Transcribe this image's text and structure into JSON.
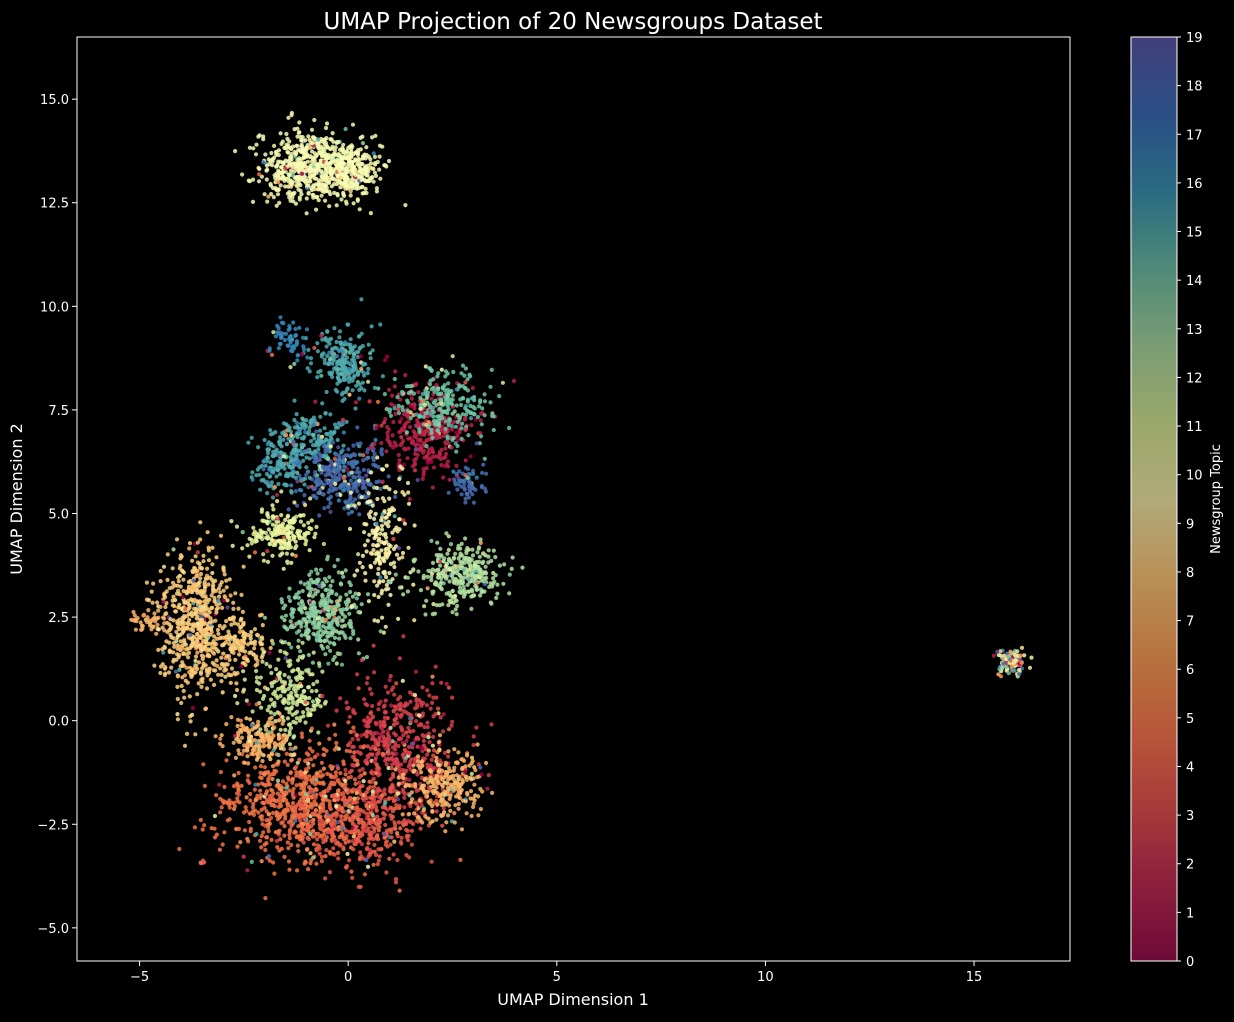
{
  "chart_data": {
    "type": "scatter",
    "title": "UMAP Projection of 20 Newsgroups Dataset",
    "xlabel": "UMAP Dimension 1",
    "ylabel": "UMAP Dimension 2",
    "xlim": [
      -6.5,
      17.3
    ],
    "ylim": [
      -5.8,
      16.5
    ],
    "xticks": [
      -5,
      0,
      5,
      10,
      15
    ],
    "xtick_labels": [
      "−5",
      "0",
      "5",
      "10",
      "15"
    ],
    "yticks": [
      -5.0,
      -2.5,
      0.0,
      2.5,
      5.0,
      7.5,
      10.0,
      12.5,
      15.0
    ],
    "ytick_labels": [
      "−5.0",
      "−2.5",
      "0.0",
      "2.5",
      "5.0",
      "7.5",
      "10.0",
      "12.5",
      "15.0"
    ],
    "grid": false,
    "background": "#000000",
    "colorbar": {
      "label": "Newsgroup Topic",
      "min": 0,
      "max": 19,
      "ticks": [
        0,
        1,
        2,
        3,
        4,
        5,
        6,
        7,
        8,
        9,
        10,
        11,
        12,
        13,
        14,
        15,
        16,
        17,
        18,
        19
      ],
      "tick_labels": [
        "0",
        "1",
        "2",
        "3",
        "4",
        "5",
        "6",
        "7",
        "8",
        "9",
        "10",
        "11",
        "12",
        "13",
        "14",
        "15",
        "16",
        "17",
        "18",
        "19"
      ],
      "colormap": [
        "#9e0142",
        "#d53e4f",
        "#f46d43",
        "#fdae61",
        "#fee08b",
        "#ffffbf",
        "#e6f598",
        "#abdda4",
        "#66c2a5",
        "#3288bd",
        "#5e4fa2"
      ],
      "colorbar_display_gradient": [
        "#6e0a38",
        "#8c1f3c",
        "#a83b3a",
        "#b8583a",
        "#b8743f",
        "#b89058",
        "#b0aa78",
        "#9aa86a",
        "#7a9c74",
        "#4e8a78",
        "#2a6a82",
        "#2a4f86",
        "#433f7a"
      ]
    },
    "clusters": [
      {
        "cx": -1.0,
        "cy": 13.4,
        "sx": 0.55,
        "sy": 0.42,
        "n": 520,
        "topic": 10
      },
      {
        "cx": 0.0,
        "cy": 13.3,
        "sx": 0.4,
        "sy": 0.35,
        "n": 300,
        "topic": 10
      },
      {
        "cx": -1.4,
        "cy": 9.2,
        "sx": 0.25,
        "sy": 0.25,
        "n": 60,
        "topic": 17
      },
      {
        "cx": -0.1,
        "cy": 8.6,
        "sx": 0.35,
        "sy": 0.4,
        "n": 220,
        "topic": 16
      },
      {
        "cx": -1.0,
        "cy": 6.7,
        "sx": 0.6,
        "sy": 0.4,
        "n": 250,
        "topic": 16
      },
      {
        "cx": -0.2,
        "cy": 5.9,
        "sx": 0.55,
        "sy": 0.45,
        "n": 300,
        "topic": 18
      },
      {
        "cx": 1.8,
        "cy": 7.0,
        "sx": 0.6,
        "sy": 0.55,
        "n": 330,
        "topic": 1
      },
      {
        "cx": 2.3,
        "cy": 7.6,
        "sx": 0.55,
        "sy": 0.45,
        "n": 250,
        "topic": 15
      },
      {
        "cx": 2.9,
        "cy": 5.7,
        "sx": 0.2,
        "sy": 0.2,
        "n": 60,
        "topic": 18
      },
      {
        "cx": -1.6,
        "cy": 6.0,
        "sx": 0.3,
        "sy": 0.3,
        "n": 90,
        "topic": 16
      },
      {
        "cx": -1.6,
        "cy": 4.5,
        "sx": 0.35,
        "sy": 0.3,
        "n": 200,
        "topic": 11
      },
      {
        "cx": 0.8,
        "cy": 4.3,
        "sx": 0.3,
        "sy": 0.9,
        "n": 200,
        "topic": 9
      },
      {
        "cx": 2.7,
        "cy": 3.5,
        "sx": 0.5,
        "sy": 0.35,
        "n": 330,
        "topic": 13
      },
      {
        "cx": -0.6,
        "cy": 2.6,
        "sx": 0.45,
        "sy": 0.5,
        "n": 330,
        "topic": 14
      },
      {
        "cx": -3.6,
        "cy": 2.4,
        "sx": 0.45,
        "sy": 0.85,
        "n": 600,
        "topic": 7
      },
      {
        "cx": -4.8,
        "cy": 2.4,
        "sx": 0.25,
        "sy": 0.15,
        "n": 40,
        "topic": 6
      },
      {
        "cx": -2.5,
        "cy": 1.8,
        "sx": 0.3,
        "sy": 0.35,
        "n": 120,
        "topic": 7
      },
      {
        "cx": -1.4,
        "cy": 0.6,
        "sx": 0.45,
        "sy": 0.5,
        "n": 220,
        "topic": 12
      },
      {
        "cx": 1.2,
        "cy": -0.5,
        "sx": 0.7,
        "sy": 0.8,
        "n": 480,
        "topic": 2
      },
      {
        "cx": -1.1,
        "cy": -2.0,
        "sx": 0.9,
        "sy": 0.7,
        "n": 700,
        "topic": 4
      },
      {
        "cx": 0.4,
        "cy": -2.4,
        "sx": 0.7,
        "sy": 0.6,
        "n": 400,
        "topic": 3
      },
      {
        "cx": 2.3,
        "cy": -1.6,
        "sx": 0.45,
        "sy": 0.45,
        "n": 250,
        "topic": 6
      },
      {
        "cx": -2.2,
        "cy": -0.5,
        "sx": 0.4,
        "sy": 0.3,
        "n": 160,
        "topic": 6
      },
      {
        "cx": -2.9,
        "cy": -2.0,
        "sx": 0.1,
        "sy": 0.06,
        "n": 12,
        "topic": 4
      },
      {
        "cx": -3.5,
        "cy": -3.4,
        "sx": 0.05,
        "sy": 0.05,
        "n": 6,
        "topic": 3
      },
      {
        "cx": 15.9,
        "cy": 1.45,
        "sx": 0.15,
        "sy": 0.17,
        "n": 120,
        "topic": -1
      }
    ]
  }
}
